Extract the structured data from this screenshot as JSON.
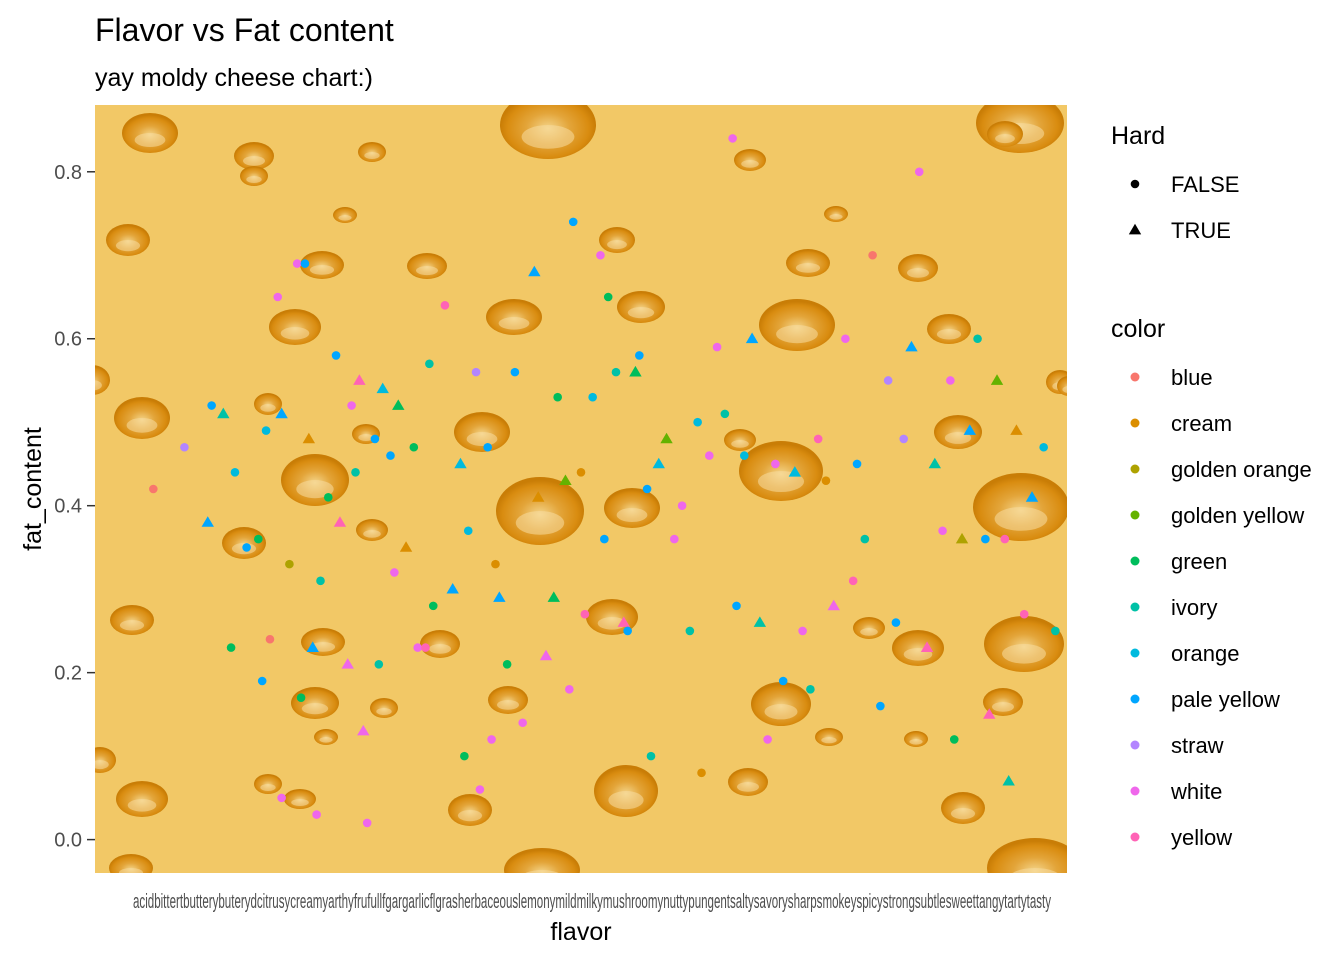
{
  "chart_data": {
    "type": "scatter",
    "title": "Flavor vs Fat content",
    "subtitle": "yay moldy cheese chart:)",
    "xlabel": "flavor",
    "ylabel": "fat_content",
    "ylim": [
      -0.04,
      0.88
    ],
    "yticks": [
      0.0,
      0.2,
      0.4,
      0.6,
      0.8
    ],
    "ytick_labels": [
      "0.0",
      "0.2",
      "0.4",
      "0.6",
      "0.8"
    ],
    "x_axis_kind": "categorical, 49 crowded overlapping tick labels",
    "x_categories": [
      "acidic",
      "bitter",
      "buttery",
      "citrusy",
      "creamy",
      "fruity",
      "full-flavored",
      "garlicky",
      "herbaceous",
      "lemony",
      "mild",
      "milky",
      "mushroomy",
      "nutty",
      "pungent",
      "salty",
      "savory",
      "sharp",
      "smokey",
      "spicy",
      "strong",
      "subtle",
      "sweet",
      "tangy",
      "tart",
      "tasty"
    ],
    "x_tick_text_visible": "acidbittertbutterybuterydcitrusycreamyarthyfrufullfgargarlicflgrasherbaceouslemonymildmilkymushroomynuttypungentsaltysavorysharpsmokeyspicystrongsubtlesweettangytartytasty",
    "background": "swiss cheese texture with holes",
    "legend_position": "right",
    "legend_shape": {
      "title": "Hard",
      "entries": [
        {
          "label": "FALSE",
          "shape": "circle"
        },
        {
          "label": "TRUE",
          "shape": "triangle"
        }
      ]
    },
    "legend_color": {
      "title": "color",
      "entries": [
        {
          "label": "blue",
          "color": "#F8766D"
        },
        {
          "label": "cream",
          "color": "#DB8E00"
        },
        {
          "label": "golden orange",
          "color": "#AEA200"
        },
        {
          "label": "golden yellow",
          "color": "#64B200"
        },
        {
          "label": "green",
          "color": "#00BD5C"
        },
        {
          "label": "ivory",
          "color": "#00C1A7"
        },
        {
          "label": "orange",
          "color": "#00BADE"
        },
        {
          "label": "pale yellow",
          "color": "#00A6FF"
        },
        {
          "label": "straw",
          "color": "#B385FF"
        },
        {
          "label": "white",
          "color": "#EF67EB"
        },
        {
          "label": "yellow",
          "color": "#FF63B6"
        }
      ]
    },
    "points": [
      {
        "x": 1.5,
        "y": 0.42,
        "color": "blue",
        "hard": false
      },
      {
        "x": 2.3,
        "y": 0.47,
        "color": "straw",
        "hard": false
      },
      {
        "x": 3.0,
        "y": 0.52,
        "color": "pale yellow",
        "hard": false
      },
      {
        "x": 3.3,
        "y": 0.51,
        "color": "ivory",
        "hard": true
      },
      {
        "x": 2.9,
        "y": 0.38,
        "color": "pale yellow",
        "hard": true
      },
      {
        "x": 3.5,
        "y": 0.23,
        "color": "green",
        "hard": false
      },
      {
        "x": 3.6,
        "y": 0.44,
        "color": "orange",
        "hard": false
      },
      {
        "x": 3.9,
        "y": 0.35,
        "color": "pale yellow",
        "hard": false
      },
      {
        "x": 4.2,
        "y": 0.36,
        "color": "green",
        "hard": false
      },
      {
        "x": 4.3,
        "y": 0.19,
        "color": "pale yellow",
        "hard": false
      },
      {
        "x": 4.4,
        "y": 0.49,
        "color": "orange",
        "hard": false
      },
      {
        "x": 4.5,
        "y": 0.24,
        "color": "blue",
        "hard": false
      },
      {
        "x": 4.7,
        "y": 0.65,
        "color": "white",
        "hard": false
      },
      {
        "x": 4.8,
        "y": 0.51,
        "color": "pale yellow",
        "hard": true
      },
      {
        "x": 4.8,
        "y": 0.05,
        "color": "white",
        "hard": false
      },
      {
        "x": 5.0,
        "y": 0.33,
        "color": "golden orange",
        "hard": false
      },
      {
        "x": 5.2,
        "y": 0.69,
        "color": "white",
        "hard": false
      },
      {
        "x": 5.4,
        "y": 0.69,
        "color": "pale yellow",
        "hard": false
      },
      {
        "x": 5.3,
        "y": 0.17,
        "color": "green",
        "hard": false
      },
      {
        "x": 5.5,
        "y": 0.48,
        "color": "cream",
        "hard": true
      },
      {
        "x": 5.6,
        "y": 0.23,
        "color": "pale yellow",
        "hard": true
      },
      {
        "x": 5.7,
        "y": 0.03,
        "color": "white",
        "hard": false
      },
      {
        "x": 5.8,
        "y": 0.31,
        "color": "ivory",
        "hard": false
      },
      {
        "x": 6.0,
        "y": 0.41,
        "color": "green",
        "hard": false
      },
      {
        "x": 6.2,
        "y": 0.58,
        "color": "pale yellow",
        "hard": false
      },
      {
        "x": 6.3,
        "y": 0.38,
        "color": "yellow",
        "hard": true
      },
      {
        "x": 6.5,
        "y": 0.21,
        "color": "white",
        "hard": true
      },
      {
        "x": 6.6,
        "y": 0.52,
        "color": "white",
        "hard": false
      },
      {
        "x": 6.7,
        "y": 0.44,
        "color": "ivory",
        "hard": false
      },
      {
        "x": 6.8,
        "y": 0.55,
        "color": "yellow",
        "hard": true
      },
      {
        "x": 6.9,
        "y": 0.13,
        "color": "white",
        "hard": true
      },
      {
        "x": 7.0,
        "y": 0.02,
        "color": "white",
        "hard": false
      },
      {
        "x": 7.2,
        "y": 0.48,
        "color": "pale yellow",
        "hard": false
      },
      {
        "x": 7.3,
        "y": 0.21,
        "color": "ivory",
        "hard": false
      },
      {
        "x": 7.4,
        "y": 0.54,
        "color": "orange",
        "hard": true
      },
      {
        "x": 7.6,
        "y": 0.46,
        "color": "pale yellow",
        "hard": false
      },
      {
        "x": 7.7,
        "y": 0.32,
        "color": "white",
        "hard": false
      },
      {
        "x": 7.8,
        "y": 0.52,
        "color": "green",
        "hard": true
      },
      {
        "x": 8.0,
        "y": 0.35,
        "color": "cream",
        "hard": true
      },
      {
        "x": 8.2,
        "y": 0.47,
        "color": "green",
        "hard": false
      },
      {
        "x": 8.3,
        "y": 0.23,
        "color": "white",
        "hard": false
      },
      {
        "x": 8.5,
        "y": 0.23,
        "color": "yellow",
        "hard": false
      },
      {
        "x": 8.6,
        "y": 0.57,
        "color": "ivory",
        "hard": false
      },
      {
        "x": 8.7,
        "y": 0.28,
        "color": "green",
        "hard": false
      },
      {
        "x": 9.0,
        "y": 0.64,
        "color": "yellow",
        "hard": false
      },
      {
        "x": 9.2,
        "y": 0.3,
        "color": "pale yellow",
        "hard": true
      },
      {
        "x": 9.4,
        "y": 0.45,
        "color": "orange",
        "hard": true
      },
      {
        "x": 9.5,
        "y": 0.1,
        "color": "green",
        "hard": false
      },
      {
        "x": 9.6,
        "y": 0.37,
        "color": "orange",
        "hard": false
      },
      {
        "x": 9.8,
        "y": 0.56,
        "color": "straw",
        "hard": false
      },
      {
        "x": 9.9,
        "y": 0.06,
        "color": "white",
        "hard": false
      },
      {
        "x": 10.1,
        "y": 0.47,
        "color": "pale yellow",
        "hard": false
      },
      {
        "x": 10.2,
        "y": 0.12,
        "color": "white",
        "hard": false
      },
      {
        "x": 10.3,
        "y": 0.33,
        "color": "cream",
        "hard": false
      },
      {
        "x": 10.4,
        "y": 0.29,
        "color": "pale yellow",
        "hard": true
      },
      {
        "x": 10.6,
        "y": 0.21,
        "color": "green",
        "hard": false
      },
      {
        "x": 10.8,
        "y": 0.56,
        "color": "pale yellow",
        "hard": false
      },
      {
        "x": 11.0,
        "y": 0.14,
        "color": "white",
        "hard": false
      },
      {
        "x": 11.3,
        "y": 0.68,
        "color": "pale yellow",
        "hard": true
      },
      {
        "x": 11.4,
        "y": 0.41,
        "color": "cream",
        "hard": true
      },
      {
        "x": 11.6,
        "y": 0.22,
        "color": "white",
        "hard": true
      },
      {
        "x": 11.8,
        "y": 0.29,
        "color": "green",
        "hard": true
      },
      {
        "x": 11.9,
        "y": 0.53,
        "color": "green",
        "hard": false
      },
      {
        "x": 12.1,
        "y": 0.43,
        "color": "golden yellow",
        "hard": true
      },
      {
        "x": 12.2,
        "y": 0.18,
        "color": "white",
        "hard": false
      },
      {
        "x": 12.3,
        "y": 0.74,
        "color": "pale yellow",
        "hard": false
      },
      {
        "x": 12.5,
        "y": 0.44,
        "color": "cream",
        "hard": false
      },
      {
        "x": 12.6,
        "y": 0.27,
        "color": "yellow",
        "hard": false
      },
      {
        "x": 12.8,
        "y": 0.53,
        "color": "orange",
        "hard": false
      },
      {
        "x": 13.0,
        "y": 0.7,
        "color": "white",
        "hard": false
      },
      {
        "x": 13.1,
        "y": 0.36,
        "color": "pale yellow",
        "hard": false
      },
      {
        "x": 13.2,
        "y": 0.65,
        "color": "green",
        "hard": false
      },
      {
        "x": 13.4,
        "y": 0.56,
        "color": "ivory",
        "hard": false
      },
      {
        "x": 13.6,
        "y": 0.26,
        "color": "yellow",
        "hard": true
      },
      {
        "x": 13.7,
        "y": 0.25,
        "color": "pale yellow",
        "hard": false
      },
      {
        "x": 13.9,
        "y": 0.56,
        "color": "green",
        "hard": true
      },
      {
        "x": 14.0,
        "y": 0.58,
        "color": "pale yellow",
        "hard": false
      },
      {
        "x": 14.2,
        "y": 0.42,
        "color": "pale yellow",
        "hard": false
      },
      {
        "x": 14.3,
        "y": 0.1,
        "color": "ivory",
        "hard": false
      },
      {
        "x": 14.5,
        "y": 0.45,
        "color": "orange",
        "hard": true
      },
      {
        "x": 14.7,
        "y": 0.48,
        "color": "golden yellow",
        "hard": true
      },
      {
        "x": 14.9,
        "y": 0.36,
        "color": "white",
        "hard": false
      },
      {
        "x": 15.1,
        "y": 0.4,
        "color": "white",
        "hard": false
      },
      {
        "x": 15.3,
        "y": 0.25,
        "color": "ivory",
        "hard": false
      },
      {
        "x": 15.5,
        "y": 0.5,
        "color": "orange",
        "hard": false
      },
      {
        "x": 15.6,
        "y": 0.08,
        "color": "cream",
        "hard": false
      },
      {
        "x": 15.8,
        "y": 0.46,
        "color": "white",
        "hard": false
      },
      {
        "x": 16.0,
        "y": 0.59,
        "color": "white",
        "hard": false
      },
      {
        "x": 16.2,
        "y": 0.51,
        "color": "ivory",
        "hard": false
      },
      {
        "x": 16.4,
        "y": 0.84,
        "color": "white",
        "hard": false
      },
      {
        "x": 16.5,
        "y": 0.28,
        "color": "pale yellow",
        "hard": false
      },
      {
        "x": 16.7,
        "y": 0.46,
        "color": "orange",
        "hard": false
      },
      {
        "x": 16.9,
        "y": 0.6,
        "color": "pale yellow",
        "hard": true
      },
      {
        "x": 17.1,
        "y": 0.26,
        "color": "ivory",
        "hard": true
      },
      {
        "x": 17.3,
        "y": 0.12,
        "color": "white",
        "hard": false
      },
      {
        "x": 17.5,
        "y": 0.45,
        "color": "white",
        "hard": false
      },
      {
        "x": 17.7,
        "y": 0.19,
        "color": "pale yellow",
        "hard": false
      },
      {
        "x": 18.0,
        "y": 0.44,
        "color": "orange",
        "hard": true
      },
      {
        "x": 18.2,
        "y": 0.25,
        "color": "white",
        "hard": false
      },
      {
        "x": 18.4,
        "y": 0.18,
        "color": "ivory",
        "hard": false
      },
      {
        "x": 18.6,
        "y": 0.48,
        "color": "yellow",
        "hard": false
      },
      {
        "x": 18.8,
        "y": 0.43,
        "color": "cream",
        "hard": false
      },
      {
        "x": 19.0,
        "y": 0.28,
        "color": "white",
        "hard": true
      },
      {
        "x": 19.3,
        "y": 0.6,
        "color": "white",
        "hard": false
      },
      {
        "x": 19.5,
        "y": 0.31,
        "color": "yellow",
        "hard": false
      },
      {
        "x": 19.6,
        "y": 0.45,
        "color": "pale yellow",
        "hard": false
      },
      {
        "x": 19.8,
        "y": 0.36,
        "color": "ivory",
        "hard": false
      },
      {
        "x": 20.0,
        "y": 0.7,
        "color": "blue",
        "hard": false
      },
      {
        "x": 20.2,
        "y": 0.16,
        "color": "pale yellow",
        "hard": false
      },
      {
        "x": 20.4,
        "y": 0.55,
        "color": "straw",
        "hard": false
      },
      {
        "x": 20.6,
        "y": 0.26,
        "color": "pale yellow",
        "hard": false
      },
      {
        "x": 20.8,
        "y": 0.48,
        "color": "straw",
        "hard": false
      },
      {
        "x": 21.0,
        "y": 0.59,
        "color": "pale yellow",
        "hard": true
      },
      {
        "x": 21.2,
        "y": 0.8,
        "color": "white",
        "hard": false
      },
      {
        "x": 21.4,
        "y": 0.23,
        "color": "yellow",
        "hard": true
      },
      {
        "x": 21.6,
        "y": 0.45,
        "color": "ivory",
        "hard": true
      },
      {
        "x": 21.8,
        "y": 0.37,
        "color": "white",
        "hard": false
      },
      {
        "x": 22.0,
        "y": 0.55,
        "color": "white",
        "hard": false
      },
      {
        "x": 22.1,
        "y": 0.12,
        "color": "green",
        "hard": false
      },
      {
        "x": 22.3,
        "y": 0.36,
        "color": "golden orange",
        "hard": true
      },
      {
        "x": 22.5,
        "y": 0.49,
        "color": "pale yellow",
        "hard": true
      },
      {
        "x": 22.7,
        "y": 0.6,
        "color": "ivory",
        "hard": false
      },
      {
        "x": 22.9,
        "y": 0.36,
        "color": "pale yellow",
        "hard": false
      },
      {
        "x": 23.0,
        "y": 0.15,
        "color": "yellow",
        "hard": true
      },
      {
        "x": 23.2,
        "y": 0.55,
        "color": "golden yellow",
        "hard": true
      },
      {
        "x": 23.4,
        "y": 0.36,
        "color": "yellow",
        "hard": false
      },
      {
        "x": 23.5,
        "y": 0.07,
        "color": "ivory",
        "hard": true
      },
      {
        "x": 23.7,
        "y": 0.49,
        "color": "cream",
        "hard": true
      },
      {
        "x": 23.9,
        "y": 0.27,
        "color": "yellow",
        "hard": false
      },
      {
        "x": 24.1,
        "y": 0.41,
        "color": "pale yellow",
        "hard": true
      },
      {
        "x": 24.4,
        "y": 0.47,
        "color": "orange",
        "hard": false
      },
      {
        "x": 24.7,
        "y": 0.25,
        "color": "ivory",
        "hard": false
      }
    ]
  }
}
